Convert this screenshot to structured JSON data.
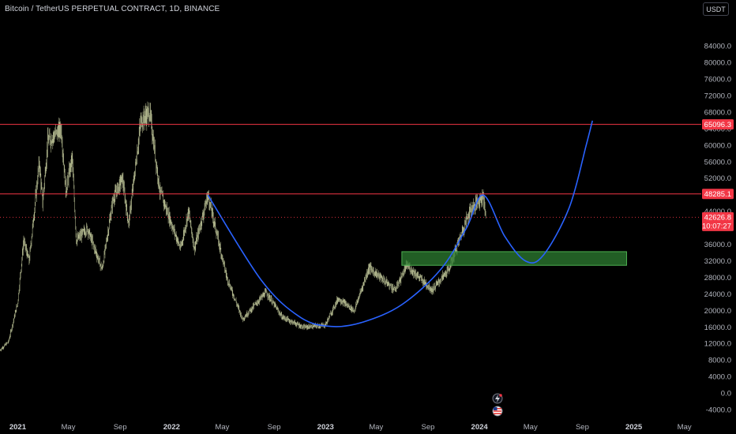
{
  "header": {
    "title": "Bitcoin / TetherUS PERPETUAL CONTRACT, 1D, BINANCE",
    "currency": "USDT"
  },
  "colors": {
    "background": "#000000",
    "candle": "#c8cfa0",
    "resistance_line": "#f23645",
    "curve": "#2962ff",
    "zone_fill": "#2e7d32",
    "zone_border": "#4caf50",
    "price_tag": "#f23645"
  },
  "chart_data": {
    "type": "line",
    "symbol": "BTCUSDT.P",
    "timeframe": "1D",
    "x_range": [
      "2020-11-20",
      "2025-06-10"
    ],
    "ylim": [
      -6000,
      91000
    ],
    "y_ticks": [
      "84000.0",
      "80000.0",
      "76000.0",
      "72000.0",
      "68000.0",
      "64000.0",
      "60000.0",
      "56000.0",
      "52000.0",
      "48000.0",
      "44000.0",
      "40000.0",
      "36000.0",
      "32000.0",
      "28000.0",
      "24000.0",
      "20000.0",
      "16000.0",
      "12000.0",
      "8000.0",
      "4000.0",
      "0.0",
      "-4000.0"
    ],
    "x_ticks": [
      {
        "label": "2021",
        "date": "2021-01-01",
        "major": true
      },
      {
        "label": "May",
        "date": "2021-05-01",
        "major": false
      },
      {
        "label": "Sep",
        "date": "2021-09-01",
        "major": false
      },
      {
        "label": "2022",
        "date": "2022-01-01",
        "major": true
      },
      {
        "label": "May",
        "date": "2022-05-01",
        "major": false
      },
      {
        "label": "Sep",
        "date": "2022-09-01",
        "major": false
      },
      {
        "label": "2023",
        "date": "2023-01-01",
        "major": true
      },
      {
        "label": "May",
        "date": "2023-05-01",
        "major": false
      },
      {
        "label": "Sep",
        "date": "2023-09-01",
        "major": false
      },
      {
        "label": "2024",
        "date": "2024-01-01",
        "major": true
      },
      {
        "label": "May",
        "date": "2024-05-01",
        "major": false
      },
      {
        "label": "Sep",
        "date": "2024-09-01",
        "major": false
      },
      {
        "label": "2025",
        "date": "2025-01-01",
        "major": true
      },
      {
        "label": "May",
        "date": "2025-05-01",
        "major": false
      }
    ],
    "price_series": [
      [
        "2020-11-20",
        10500
      ],
      [
        "2020-12-10",
        12500
      ],
      [
        "2021-01-01",
        22000
      ],
      [
        "2021-01-15",
        37000
      ],
      [
        "2021-01-28",
        32000
      ],
      [
        "2021-02-21",
        56000
      ],
      [
        "2021-03-01",
        46000
      ],
      [
        "2021-03-13",
        61000
      ],
      [
        "2021-04-14",
        64000
      ],
      [
        "2021-04-25",
        49000
      ],
      [
        "2021-05-10",
        57000
      ],
      [
        "2021-05-20",
        37000
      ],
      [
        "2021-06-15",
        40000
      ],
      [
        "2021-07-20",
        30000
      ],
      [
        "2021-08-15",
        47000
      ],
      [
        "2021-09-06",
        52000
      ],
      [
        "2021-09-21",
        41000
      ],
      [
        "2021-10-20",
        66000
      ],
      [
        "2021-11-10",
        68000
      ],
      [
        "2021-12-04",
        49000
      ],
      [
        "2022-01-22",
        35000
      ],
      [
        "2022-02-10",
        44000
      ],
      [
        "2022-02-24",
        35000
      ],
      [
        "2022-03-28",
        48000
      ],
      [
        "2022-05-12",
        28000
      ],
      [
        "2022-06-18",
        18000
      ],
      [
        "2022-08-13",
        24500
      ],
      [
        "2022-09-20",
        18500
      ],
      [
        "2022-11-09",
        16000
      ],
      [
        "2022-12-31",
        16500
      ],
      [
        "2023-01-31",
        23000
      ],
      [
        "2023-03-10",
        20000
      ],
      [
        "2023-04-14",
        30500
      ],
      [
        "2023-06-15",
        25000
      ],
      [
        "2023-07-13",
        31000
      ],
      [
        "2023-09-11",
        25000
      ],
      [
        "2023-10-20",
        30000
      ],
      [
        "2023-12-08",
        44000
      ],
      [
        "2024-01-10",
        48000
      ],
      [
        "2024-01-16",
        42626.8
      ]
    ],
    "horizontal_levels": [
      {
        "label": "65096.3",
        "value": 65096.3
      },
      {
        "label": "48285.1",
        "value": 48285.1
      }
    ],
    "last_price": {
      "label": "42626.8",
      "value": 42626.8,
      "countdown": "10:07:27"
    },
    "support_zone": {
      "start": "2023-07-01",
      "end": "2024-12-15",
      "y_low": 31000,
      "y_high": 34300
    },
    "cup_curve": [
      [
        "2022-03-28",
        48000
      ],
      [
        "2022-08-01",
        27500
      ],
      [
        "2022-11-01",
        18500
      ],
      [
        "2023-01-15",
        16200
      ],
      [
        "2023-04-01",
        17300
      ],
      [
        "2023-07-01",
        21500
      ],
      [
        "2023-10-01",
        30000
      ],
      [
        "2023-12-01",
        40000
      ],
      [
        "2024-01-10",
        48000
      ],
      [
        "2024-03-01",
        38000
      ],
      [
        "2024-04-20",
        32000
      ],
      [
        "2024-06-01",
        33500
      ],
      [
        "2024-08-01",
        45000
      ],
      [
        "2024-09-10",
        60000
      ],
      [
        "2024-09-25",
        66000
      ]
    ]
  }
}
